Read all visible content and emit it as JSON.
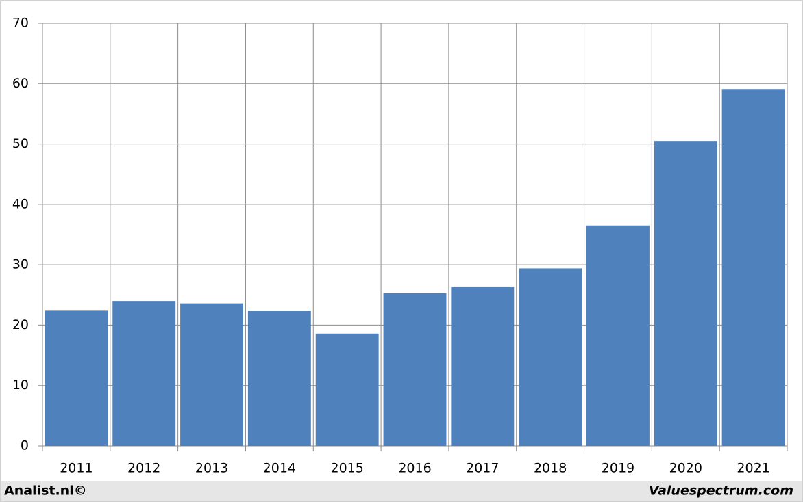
{
  "chart_data": {
    "type": "bar",
    "categories": [
      "2011",
      "2012",
      "2013",
      "2014",
      "2015",
      "2016",
      "2017",
      "2018",
      "2019",
      "2020",
      "2021"
    ],
    "values": [
      22.5,
      24.0,
      23.6,
      22.4,
      18.6,
      25.3,
      26.4,
      29.4,
      36.5,
      50.5,
      59.1
    ],
    "color": "#4f81bd",
    "ylim": [
      0,
      70
    ],
    "yticks": [
      0,
      10,
      20,
      30,
      40,
      50,
      60,
      70
    ],
    "grid": true,
    "source_left": "Analist.nl©",
    "source_right": "Valuespectrum.com"
  }
}
